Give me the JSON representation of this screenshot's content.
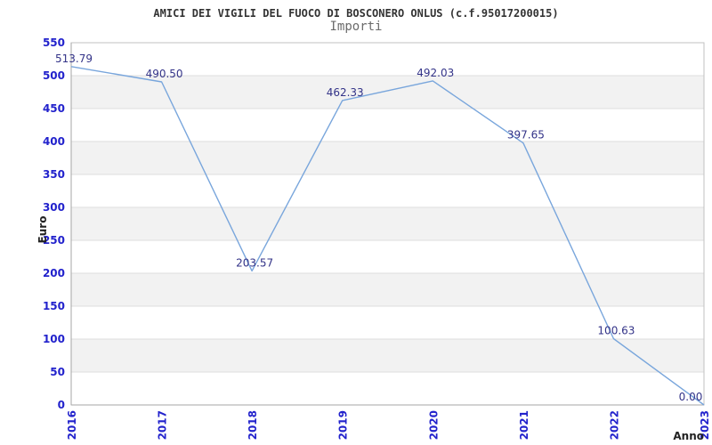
{
  "header": {
    "title": "AMICI DEI VIGILI DEL FUOCO DI BOSCONERO ONLUS (c.f.95017200015)",
    "subtitle": "Importi"
  },
  "chart_data": {
    "type": "line",
    "title": "AMICI DEI VIGILI DEL FUOCO DI BOSCONERO ONLUS (c.f.95017200015)",
    "subtitle": "Importi",
    "x": [
      "2016",
      "2017",
      "2018",
      "2019",
      "2020",
      "2021",
      "2022",
      "2023"
    ],
    "series": [
      {
        "name": "Importi",
        "values": [
          513.79,
          490.5,
          203.57,
          462.33,
          492.03,
          397.65,
          100.63,
          0.0
        ],
        "point_labels": [
          "513.79",
          "490.50",
          "203.57",
          "462.33",
          "492.03",
          "397.65",
          "100.63",
          "0.00"
        ]
      }
    ],
    "xlabel": "Anno",
    "ylabel": "Euro",
    "ylim": [
      0,
      550
    ],
    "ytick_step": 50,
    "yticks": [
      0,
      50,
      100,
      150,
      200,
      250,
      300,
      350,
      400,
      450,
      500,
      550
    ],
    "grid": "horizontal-bands-alternating",
    "legend": "none",
    "colors": {
      "line": "#79A6DC",
      "tick_label": "#2222CC",
      "point_label": "#333388",
      "band": "#F2F2F2",
      "gridline": "#DDDDDD",
      "border": "#C0C0C0",
      "axis": "#A6A6A6",
      "axis_title": "#222222",
      "title": "#333333",
      "subtitle": "#6B6B6B",
      "background": "#FFFFFF"
    }
  },
  "layout_labels": {
    "y_axis_title": "Euro",
    "x_axis_title": "Anno"
  }
}
